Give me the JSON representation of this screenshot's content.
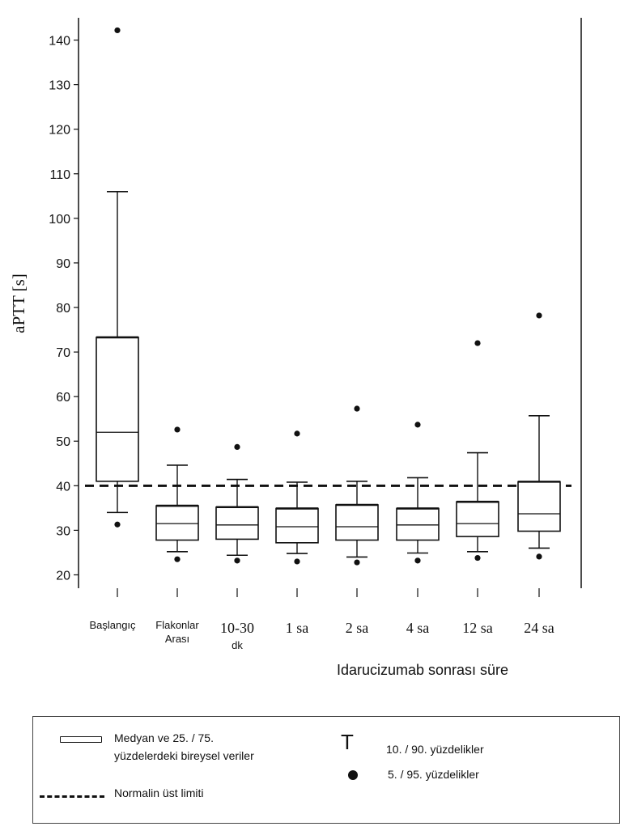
{
  "chart_data": {
    "type": "box",
    "ylabel": "aPTT [s]",
    "xlabel": "Idarucizumab sonrası süre",
    "yticks": [
      20,
      30,
      40,
      50,
      60,
      70,
      80,
      90,
      100,
      110,
      120,
      130,
      140
    ],
    "ylim": [
      17,
      145
    ],
    "reference_line": {
      "value": 40,
      "style": "dashed"
    },
    "categories": [
      [
        "Başlangıç"
      ],
      [
        "Flakonlar",
        "Arası"
      ],
      [
        "10-30",
        "dk"
      ],
      [
        "1 sa"
      ],
      [
        "2 sa"
      ],
      [
        "4 sa"
      ],
      [
        "12 sa"
      ],
      [
        "24 sa"
      ]
    ],
    "boxes": [
      {
        "p5": 31.3,
        "p10": 34,
        "q1": 41,
        "median": 52,
        "q3": 73.3,
        "p90": 106,
        "p95": 142.2
      },
      {
        "p5": 23.5,
        "p10": 25.2,
        "q1": 27.8,
        "median": 31.5,
        "q3": 35.5,
        "p90": 44.6,
        "p95": 52.6
      },
      {
        "p5": 23.2,
        "p10": 24.4,
        "q1": 28,
        "median": 31.2,
        "q3": 35.2,
        "p90": 41.4,
        "p95": 48.7
      },
      {
        "p5": 23,
        "p10": 24.8,
        "q1": 27.2,
        "median": 30.8,
        "q3": 34.9,
        "p90": 40.8,
        "p95": 51.7
      },
      {
        "p5": 22.8,
        "p10": 24,
        "q1": 27.8,
        "median": 30.8,
        "q3": 35.7,
        "p90": 41,
        "p95": 57.3
      },
      {
        "p5": 23.2,
        "p10": 24.9,
        "q1": 27.8,
        "median": 31.2,
        "q3": 34.9,
        "p90": 41.8,
        "p95": 53.7
      },
      {
        "p5": 23.8,
        "p10": 25.2,
        "q1": 28.6,
        "median": 31.5,
        "q3": 36.4,
        "p90": 47.4,
        "p95": 72
      },
      {
        "p5": 24.1,
        "p10": 26,
        "q1": 29.8,
        "median": 33.7,
        "q3": 40.9,
        "p90": 55.7,
        "p95": 78.2
      }
    ]
  },
  "legend": {
    "box_label_line1": "Medyan ve 25. / 75.",
    "box_label_line2": "yüzdelerdeki bireysel veriler",
    "dash_label": "Normalin üst limiti",
    "whisker_label": "10. / 90. yüzdelikler",
    "dot_label": "5. / 95. yüzdelikler",
    "whisker_symbol": "T"
  }
}
